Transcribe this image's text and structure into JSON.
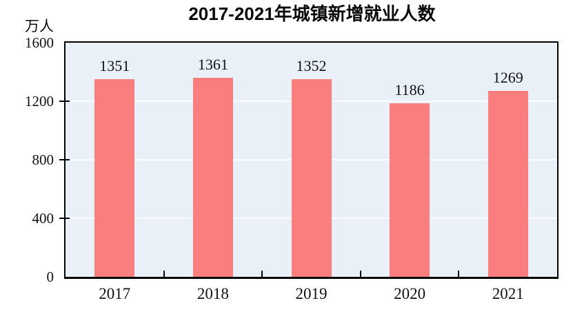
{
  "chart_data": {
    "type": "bar",
    "title": "2017-2021年城镇新增就业人数",
    "ylabel": "万人",
    "xlabel": "",
    "categories": [
      "2017",
      "2018",
      "2019",
      "2020",
      "2021"
    ],
    "values": [
      1351,
      1361,
      1352,
      1186,
      1269
    ],
    "data_labels": [
      "1351",
      "1361",
      "1352",
      "1186",
      "1269"
    ],
    "ylim": [
      0,
      1600
    ],
    "yticks": [
      0,
      400,
      800,
      1200,
      1600
    ],
    "grid": true,
    "legend_position": "none",
    "colors": {
      "bar": "#FA7E7E",
      "plot_background": "#E9F0F8",
      "gridline": "#FCFDFE",
      "axis": "#000000",
      "text": "#111111"
    }
  }
}
